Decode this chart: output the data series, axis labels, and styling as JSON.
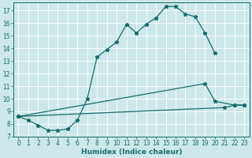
{
  "xlabel": "Humidex (Indice chaleur)",
  "bg_color": "#cce8e8",
  "line_color": "#1a6b6b",
  "grid_color": "#b0d0d0",
  "xlim": [
    -0.5,
    23.5
  ],
  "ylim": [
    7,
    17.6
  ],
  "yticks": [
    7,
    8,
    9,
    10,
    11,
    12,
    13,
    14,
    15,
    16,
    17
  ],
  "xticks": [
    0,
    1,
    2,
    3,
    4,
    5,
    6,
    7,
    8,
    9,
    10,
    11,
    12,
    13,
    14,
    15,
    16,
    17,
    18,
    19,
    20,
    21,
    22,
    23
  ],
  "line1_x": [
    0,
    1,
    2,
    3,
    4,
    5,
    6,
    7,
    8,
    9,
    10,
    11,
    12,
    13,
    14,
    15,
    16,
    17,
    18,
    19,
    20
  ],
  "line1_y": [
    8.6,
    8.3,
    7.9,
    7.5,
    7.5,
    7.6,
    8.3,
    10.0,
    13.3,
    13.9,
    14.5,
    15.9,
    15.2,
    15.9,
    16.4,
    17.3,
    17.3,
    16.7,
    16.5,
    15.2,
    13.6
  ],
  "line2_x": [
    0,
    19,
    20,
    22,
    23
  ],
  "line2_y": [
    8.6,
    11.2,
    9.8,
    9.5,
    9.5
  ],
  "line2_markers": [
    0,
    19,
    20,
    22,
    23
  ],
  "line3_x": [
    0,
    21,
    22,
    23
  ],
  "line3_y": [
    8.6,
    9.3,
    9.5,
    9.5
  ],
  "line3_markers": [
    0,
    21,
    22,
    23
  ],
  "tick_fontsize": 5.5,
  "label_fontsize": 6.5
}
